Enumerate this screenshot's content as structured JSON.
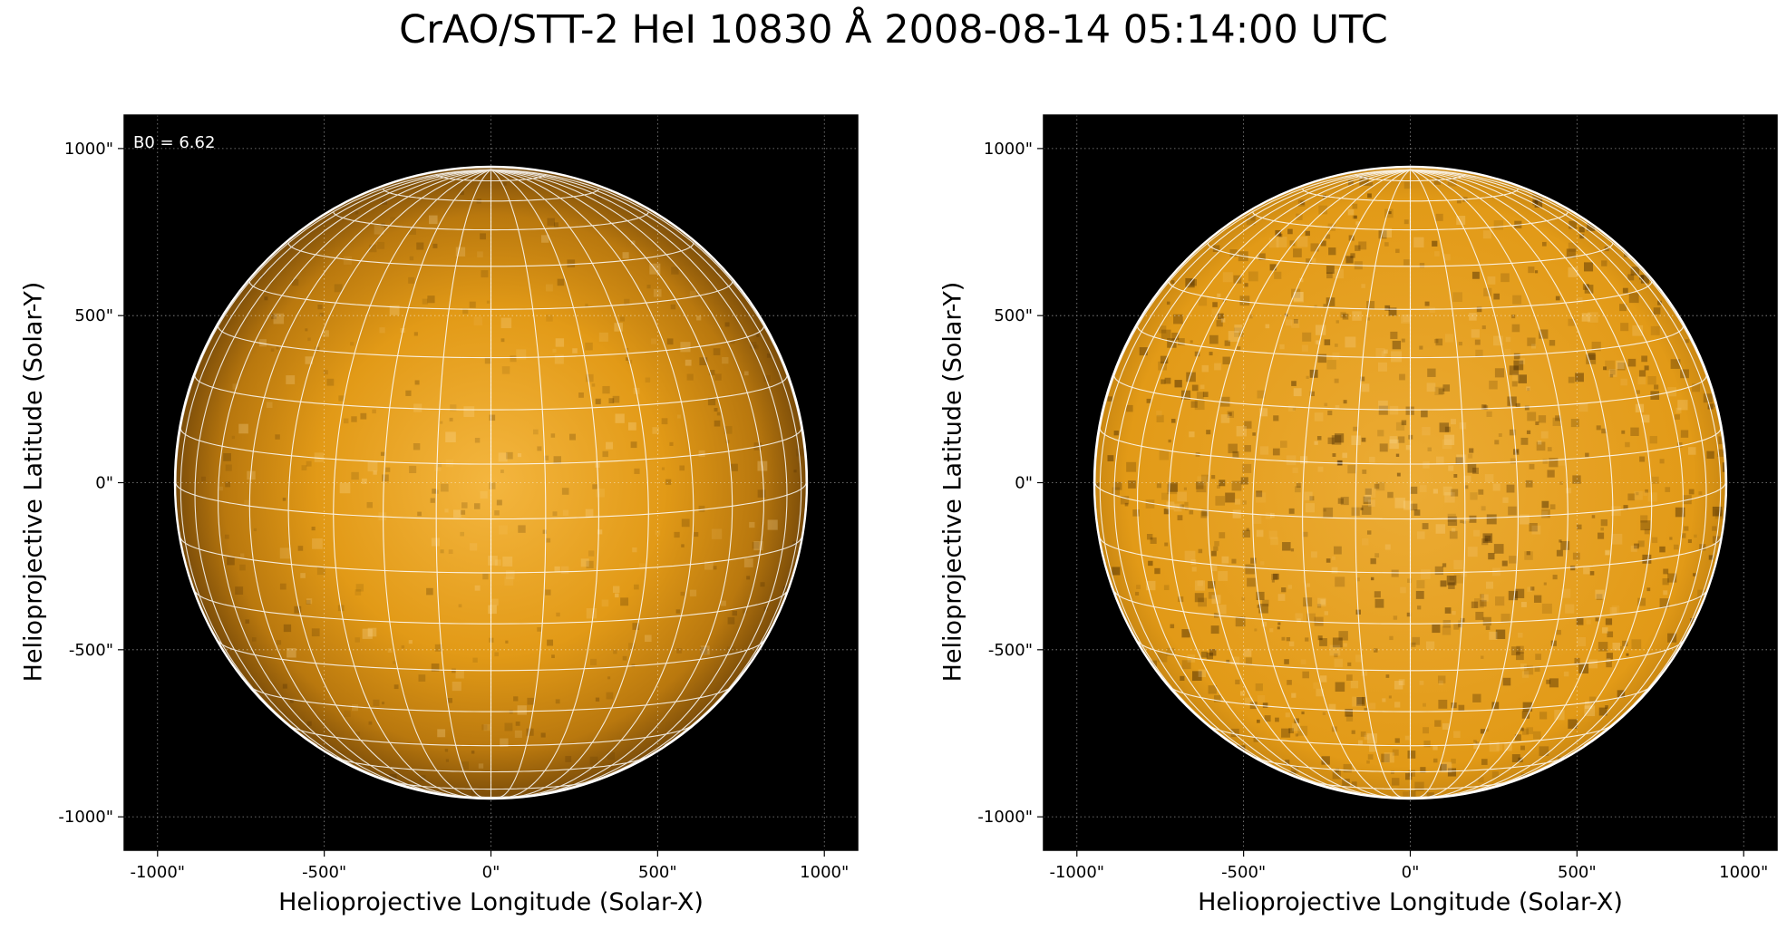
{
  "figure": {
    "title": "CrAO/STT-2 HeI 10830 Å 2008-08-14 05:14:00 UTC",
    "disk_color": "#e29a17",
    "background_color": "#000000"
  },
  "panels": [
    {
      "name": "left",
      "annotation": "B0 = 6.62",
      "xlabel": "Helioprojective Longitude (Solar-X)",
      "ylabel": "Helioprojective Latitude (Solar-Y)",
      "x_ticks": [
        "-1000\"",
        "-500\"",
        "0\"",
        "500\"",
        "1000\""
      ],
      "y_ticks": [
        "1000\"",
        "500\"",
        "0\"",
        "-500\"",
        "-1000\""
      ],
      "x_tick_values": [
        -1000,
        -500,
        0,
        500,
        1000
      ],
      "y_tick_values": [
        1000,
        500,
        0,
        -500,
        -1000
      ],
      "xlim": [
        -1100,
        1100
      ],
      "ylim": [
        -1100,
        1100
      ],
      "solar_radius_arcsec": 945,
      "grid_lon_step_deg": 10,
      "grid_lat_step_deg": 10
    },
    {
      "name": "right",
      "annotation": "",
      "xlabel": "Helioprojective Longitude (Solar-X)",
      "ylabel": "Helioprojective Latitude (Solar-Y)",
      "x_ticks": [
        "-1000\"",
        "-500\"",
        "0\"",
        "500\"",
        "1000\""
      ],
      "y_ticks": [
        "1000\"",
        "500\"",
        "0\"",
        "-500\"",
        "-1000\""
      ],
      "x_tick_values": [
        -1000,
        -500,
        0,
        500,
        1000
      ],
      "y_tick_values": [
        1000,
        500,
        0,
        -500,
        -1000
      ],
      "xlim": [
        -1100,
        1100
      ],
      "ylim": [
        -1100,
        1100
      ],
      "solar_radius_arcsec": 945,
      "grid_lon_step_deg": 10,
      "grid_lat_step_deg": 10
    }
  ]
}
